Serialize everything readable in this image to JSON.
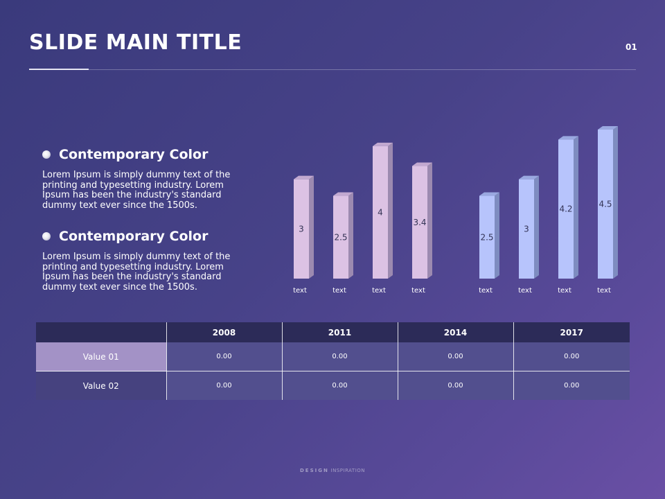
{
  "slide": {
    "title": "SLIDE MAIN TITLE",
    "page_number": "01"
  },
  "bullets": [
    {
      "title": "Contemporary Color",
      "body": "Lorem Ipsum is simply dummy text of the printing and typesetting industry. Lorem Ipsum has been the industry's standard dummy text ever since the 1500s."
    },
    {
      "title": "Contemporary Color",
      "body": "Lorem Ipsum is simply dummy text of the printing and typesetting industry. Lorem Ipsum has been the industry's standard dummy text ever since the 1500s."
    }
  ],
  "chart_data": [
    {
      "type": "bar",
      "categories": [
        "text",
        "text",
        "text",
        "text"
      ],
      "values": [
        3,
        2.5,
        4,
        3.4
      ],
      "ylim": [
        0,
        4.5
      ],
      "grid": false,
      "color": "#dcc2e4",
      "side_color": "#9c8ab0",
      "top_color": "#c2a9d0"
    },
    {
      "type": "bar",
      "categories": [
        "text",
        "text",
        "text",
        "text"
      ],
      "values": [
        2.5,
        3,
        4.2,
        4.5
      ],
      "ylim": [
        0,
        4.5
      ],
      "grid": false,
      "color": "#b7c4fc",
      "side_color": "#7e8cc0",
      "top_color": "#9aa8e0"
    }
  ],
  "table": {
    "headers": [
      "",
      "2008",
      "2011",
      "2014",
      "2017"
    ],
    "rows": [
      {
        "label": "Value 01",
        "cells": [
          "0.00",
          "0.00",
          "0.00",
          "0.00"
        ]
      },
      {
        "label": "Value 02",
        "cells": [
          "0.00",
          "0.00",
          "0.00",
          "0.00"
        ]
      }
    ]
  },
  "footer": {
    "brand": "DESIGN",
    "tagline": "INSPIRATION"
  },
  "colors": {
    "header_bg": "#2c2b58",
    "cell_bg": "#524f8e",
    "highlight_row_label": "#a392c6"
  }
}
